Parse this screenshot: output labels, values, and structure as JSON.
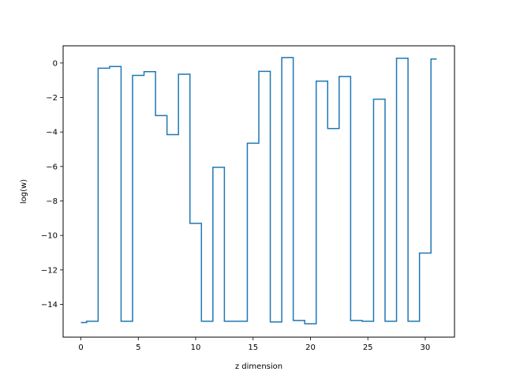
{
  "chart_data": {
    "type": "line",
    "drawstyle": "steps-mid",
    "xlabel": "z dimension",
    "ylabel": "log(w)",
    "xlim": [
      -1.55,
      32.55
    ],
    "ylim": [
      -15.9,
      1.0
    ],
    "xticks": [
      0,
      5,
      10,
      15,
      20,
      25,
      30
    ],
    "yticks": [
      0,
      -2,
      -4,
      -6,
      -8,
      -10,
      -12,
      -14
    ],
    "grid": false,
    "series": [
      {
        "color": "#1f77b4",
        "x": [
          0,
          1,
          2,
          3,
          4,
          5,
          6,
          7,
          8,
          9,
          10,
          11,
          12,
          13,
          14,
          15,
          16,
          17,
          18,
          19,
          20,
          21,
          22,
          23,
          24,
          25,
          26,
          27,
          28,
          29,
          30,
          31
        ],
        "y": [
          -15.05,
          -14.98,
          -0.3,
          -0.2,
          -14.98,
          -0.72,
          -0.5,
          -3.05,
          -4.15,
          -0.65,
          -9.3,
          -14.98,
          -6.05,
          -14.98,
          -14.98,
          -4.65,
          -0.48,
          -15.02,
          0.32,
          -14.93,
          -15.12,
          -1.05,
          -3.8,
          -0.78,
          -14.93,
          -14.98,
          -2.1,
          -14.98,
          0.28,
          -14.98,
          -11.02,
          0.23
        ]
      }
    ]
  }
}
